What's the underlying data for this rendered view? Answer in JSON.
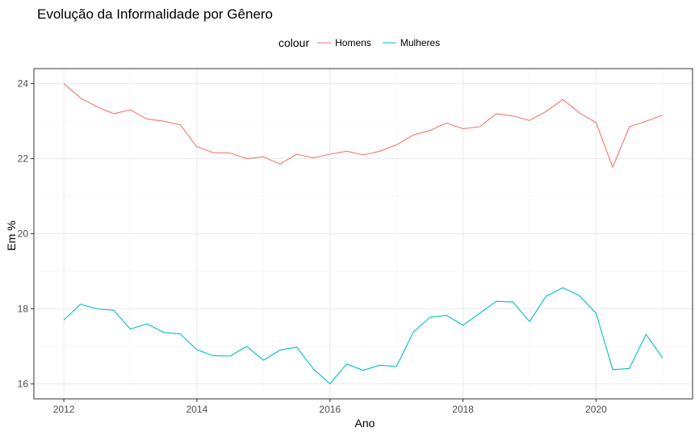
{
  "chart_data": {
    "type": "line",
    "title": "Evolução da Informalidade por Gênero",
    "xlabel": "Ano",
    "ylabel": "Em %",
    "xlim": [
      2011.55,
      2021.45
    ],
    "ylim": [
      15.6,
      24.4
    ],
    "x_ticks": [
      2012,
      2014,
      2016,
      2018,
      2020
    ],
    "y_ticks": [
      16,
      18,
      20,
      22,
      24
    ],
    "grid": true,
    "legend": {
      "title": "colour",
      "position": "top"
    },
    "series": [
      {
        "name": "Homens",
        "color": "#F8766D",
        "x": [
          2012.0,
          2012.25,
          2012.5,
          2012.75,
          2013.0,
          2013.25,
          2013.5,
          2013.75,
          2014.0,
          2014.25,
          2014.5,
          2014.75,
          2015.0,
          2015.25,
          2015.5,
          2015.75,
          2016.0,
          2016.25,
          2016.5,
          2016.75,
          2017.0,
          2017.25,
          2017.5,
          2017.75,
          2018.0,
          2018.25,
          2018.5,
          2018.75,
          2019.0,
          2019.25,
          2019.5,
          2019.75,
          2020.0,
          2020.25,
          2020.5,
          2020.75,
          2021.0
        ],
        "values": [
          24.0,
          23.62,
          23.38,
          23.2,
          23.3,
          23.06,
          23.0,
          22.9,
          22.32,
          22.16,
          22.15,
          22.0,
          22.05,
          21.86,
          22.12,
          22.02,
          22.12,
          22.2,
          22.1,
          22.2,
          22.37,
          22.63,
          22.75,
          22.95,
          22.8,
          22.85,
          23.2,
          23.14,
          23.02,
          23.26,
          23.58,
          23.22,
          22.96,
          21.77,
          22.85,
          23.0,
          23.16
        ]
      },
      {
        "name": "Mulheres",
        "color": "#00BFC4",
        "x": [
          2012.0,
          2012.25,
          2012.5,
          2012.75,
          2013.0,
          2013.25,
          2013.5,
          2013.75,
          2014.0,
          2014.25,
          2014.5,
          2014.75,
          2015.0,
          2015.25,
          2015.5,
          2015.75,
          2016.0,
          2016.25,
          2016.5,
          2016.75,
          2017.0,
          2017.25,
          2017.5,
          2017.75,
          2018.0,
          2018.25,
          2018.5,
          2018.75,
          2019.0,
          2019.25,
          2019.5,
          2019.75,
          2020.0,
          2020.25,
          2020.5,
          2020.75,
          2021.0
        ],
        "values": [
          17.7,
          18.12,
          18.0,
          17.96,
          17.46,
          17.6,
          17.37,
          17.33,
          16.91,
          16.75,
          16.74,
          17.0,
          16.63,
          16.9,
          16.98,
          16.4,
          16.0,
          16.53,
          16.36,
          16.5,
          16.46,
          17.37,
          17.77,
          17.83,
          17.56,
          17.88,
          18.2,
          18.18,
          17.66,
          18.34,
          18.56,
          18.35,
          17.88,
          16.38,
          16.41,
          17.32,
          16.69
        ]
      }
    ]
  }
}
